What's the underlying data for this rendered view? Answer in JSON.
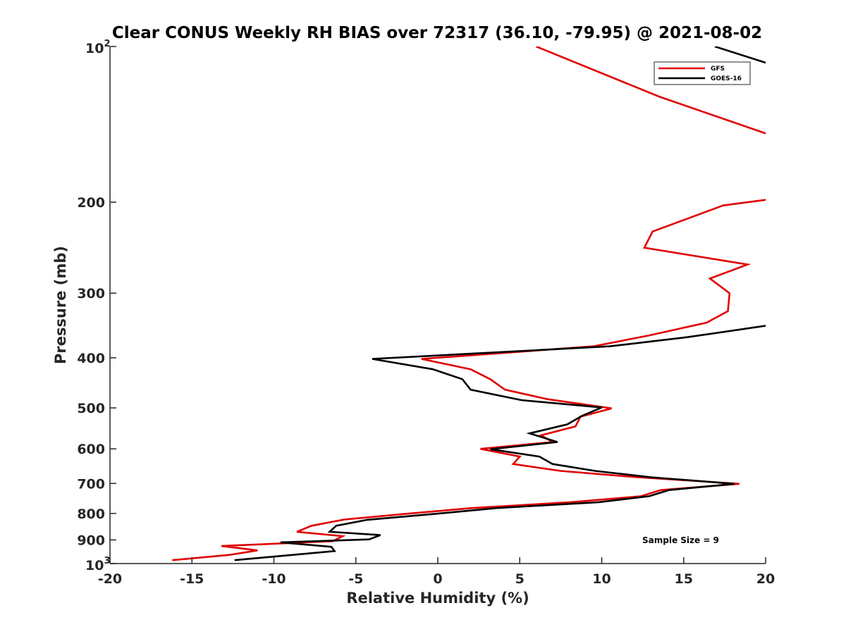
{
  "chart_data": {
    "type": "line",
    "title": "Clear CONUS Weekly RH BIAS over 72317 (36.10, -79.95) @ 2021-08-02",
    "xlabel": "Relative Humidity (%)",
    "ylabel": "Pressure (mb)",
    "xlim": [
      -20,
      20
    ],
    "ylim": [
      100,
      1000
    ],
    "yscale": "log",
    "y_reversed": true,
    "x_ticks": [
      "-20",
      "-15",
      "-10",
      "-5",
      "0",
      "5",
      "10",
      "15",
      "20"
    ],
    "y_ticks": [
      {
        "value": 100,
        "base": "10",
        "exp": "2"
      },
      {
        "value": 200,
        "label": "200"
      },
      {
        "value": 300,
        "label": "300"
      },
      {
        "value": 400,
        "label": "400"
      },
      {
        "value": 500,
        "label": "500"
      },
      {
        "value": 600,
        "label": "600"
      },
      {
        "value": 700,
        "label": "700"
      },
      {
        "value": 800,
        "label": "800"
      },
      {
        "value": 900,
        "label": "900"
      },
      {
        "value": 1000,
        "base": "10",
        "exp": "3"
      }
    ],
    "grid": false,
    "legend_position": "top-right",
    "annotation": "Sample Size = 9",
    "series": [
      {
        "name": "GFS",
        "color": "#e00000",
        "points": [
          [
            6.0,
            100
          ],
          [
            13.5,
            125
          ],
          [
            20.2,
            148
          ],
          [
            20.5,
            197
          ],
          [
            17.4,
            203
          ],
          [
            13.1,
            228
          ],
          [
            12.6,
            245
          ],
          [
            18.9,
            264
          ],
          [
            16.6,
            281
          ],
          [
            17.8,
            300
          ],
          [
            17.7,
            325
          ],
          [
            16.4,
            342
          ],
          [
            12.9,
            362
          ],
          [
            9.5,
            380
          ],
          [
            -1.0,
            402
          ],
          [
            2.0,
            421
          ],
          [
            3.2,
            440
          ],
          [
            4.1,
            461
          ],
          [
            6.7,
            481
          ],
          [
            10.6,
            501
          ],
          [
            8.7,
            520
          ],
          [
            8.4,
            543
          ],
          [
            6.3,
            565
          ],
          [
            7.0,
            582
          ],
          [
            2.6,
            600
          ],
          [
            5.0,
            621
          ],
          [
            4.6,
            642
          ],
          [
            7.5,
            662
          ],
          [
            12.2,
            681
          ],
          [
            18.4,
            701
          ],
          [
            13.6,
            721
          ],
          [
            12.4,
            741
          ],
          [
            8.1,
            761
          ],
          [
            2.1,
            781
          ],
          [
            -1.9,
            801
          ],
          [
            -5.7,
            822
          ],
          [
            -7.7,
            845
          ],
          [
            -8.6,
            868
          ],
          [
            -5.8,
            885
          ],
          [
            -6.4,
            905
          ],
          [
            -13.2,
            925
          ],
          [
            -11.0,
            943
          ],
          [
            -12.7,
            962
          ],
          [
            -16.2,
            985
          ]
        ]
      },
      {
        "name": "GOES-16",
        "color": "#000000",
        "points": [
          [
            16.9,
            100
          ],
          [
            20.2,
            108
          ],
          [
            20.5,
            345
          ],
          [
            15.2,
            365
          ],
          [
            10.5,
            380
          ],
          [
            -4.0,
            402
          ],
          [
            -0.3,
            421
          ],
          [
            1.5,
            440
          ],
          [
            2.0,
            461
          ],
          [
            5.1,
            483
          ],
          [
            10.0,
            499
          ],
          [
            8.8,
            518
          ],
          [
            7.9,
            538
          ],
          [
            5.6,
            560
          ],
          [
            7.3,
            582
          ],
          [
            3.2,
            601
          ],
          [
            6.2,
            621
          ],
          [
            7.0,
            642
          ],
          [
            9.6,
            662
          ],
          [
            13.0,
            681
          ],
          [
            18.1,
            701
          ],
          [
            14.1,
            721
          ],
          [
            12.9,
            741
          ],
          [
            9.8,
            761
          ],
          [
            3.6,
            781
          ],
          [
            -0.1,
            801
          ],
          [
            -4.3,
            823
          ],
          [
            -6.2,
            845
          ],
          [
            -6.6,
            868
          ],
          [
            -3.5,
            881
          ],
          [
            -4.2,
            898
          ],
          [
            -9.6,
            910
          ],
          [
            -6.5,
            928
          ],
          [
            -6.3,
            946
          ],
          [
            -12.4,
            985
          ]
        ]
      }
    ]
  }
}
